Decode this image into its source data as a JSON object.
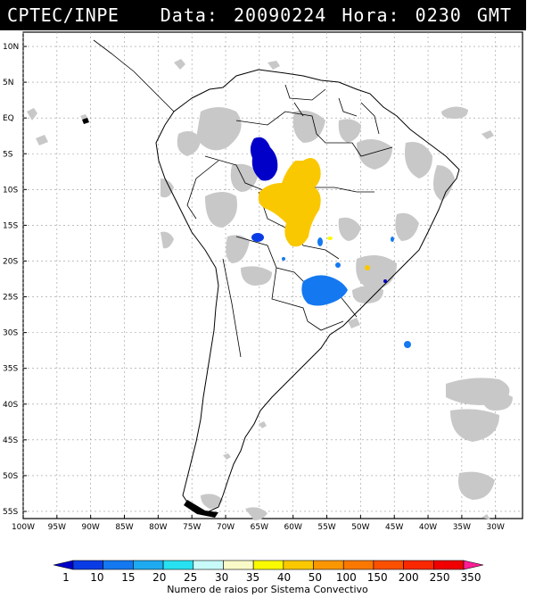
{
  "header": {
    "source": "CPTEC/INPE",
    "date_label": "Data:",
    "date_value": "20090224",
    "time_label": "Hora:",
    "time_value": "0230",
    "time_zone": "GMT"
  },
  "map": {
    "lat_labels": [
      "10N",
      "5N",
      "EQ",
      "5S",
      "10S",
      "15S",
      "20S",
      "25S",
      "30S",
      "35S",
      "40S",
      "45S",
      "50S",
      "55S"
    ],
    "lon_labels": [
      "100W",
      "95W",
      "90W",
      "85W",
      "80W",
      "75W",
      "70W",
      "65W",
      "60W",
      "55W",
      "50W",
      "45W",
      "40W",
      "35W",
      "30W"
    ]
  },
  "colorbar": {
    "title": "Numero de raios por Sistema Convectivo",
    "ticks": [
      "1",
      "10",
      "15",
      "20",
      "25",
      "30",
      "35",
      "40",
      "50",
      "100",
      "150",
      "200",
      "250",
      "350"
    ],
    "colors": [
      "#0000c8",
      "#0a3ce6",
      "#1478f0",
      "#1eaaf0",
      "#28e1f0",
      "#c8fafa",
      "#fafac8",
      "#fafa00",
      "#fac800",
      "#fa9600",
      "#fa7800",
      "#fa5000",
      "#fa2800",
      "#f00000",
      "#ff1e96"
    ]
  },
  "legend_colors": {
    "cloud": "#c8c8c8",
    "coast": "#000000"
  }
}
